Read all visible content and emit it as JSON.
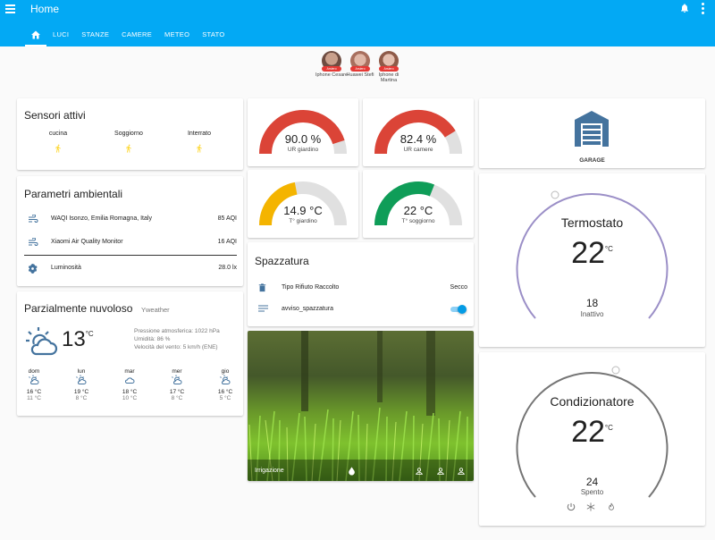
{
  "header": {
    "title": "Home",
    "tabs": [
      "LUCI",
      "STANZE",
      "CAMERE",
      "METEO",
      "STATO"
    ]
  },
  "people": [
    {
      "name": "Iphone Cesare",
      "badge": "Arsiero",
      "color": "#8d6e63"
    },
    {
      "name": "Huawei Stefi",
      "badge": "Arsiero",
      "color": "#c08a7a"
    },
    {
      "name": "Iphone di Martina",
      "badge": "Arsiero",
      "color": "#b07a6a"
    }
  ],
  "sensori": {
    "title": "Sensori attivi",
    "items": [
      {
        "label": "cucina",
        "icon": "walk-icon"
      },
      {
        "label": "Soggiorno",
        "icon": "walk-icon"
      },
      {
        "label": "Interrato",
        "icon": "walk-icon"
      }
    ]
  },
  "parametri": {
    "title": "Parametri ambientali",
    "rows": [
      {
        "label": "WAQI Isonzo, Emilia Romagna, Italy",
        "value": "85 AQI",
        "icon": "air-icon"
      },
      {
        "label": "Xiaomi Air Quality Monitor",
        "value": "16 AQI",
        "icon": "air-icon"
      },
      {
        "label": "Luminosità",
        "value": "28.0 lx",
        "icon": "brightness-icon"
      }
    ]
  },
  "meteo": {
    "title": "Parzialmente nuvoloso",
    "source": "Yweather",
    "temp": "13",
    "unit": "°C",
    "details": [
      "Pressione atmosferica: 1022 hPa",
      "Umidità: 86 %",
      "Velocità del vento: 5 km/h (ENE)"
    ],
    "forecast": [
      {
        "day": "dom",
        "hi": "16 °C",
        "lo": "11 °C",
        "icon": "partly-cloudy-icon"
      },
      {
        "day": "lun",
        "hi": "19 °C",
        "lo": "8 °C",
        "icon": "partly-cloudy-icon"
      },
      {
        "day": "mar",
        "hi": "18 °C",
        "lo": "10 °C",
        "icon": "cloudy-icon"
      },
      {
        "day": "mer",
        "hi": "17 °C",
        "lo": "8 °C",
        "icon": "partly-cloudy-icon"
      },
      {
        "day": "gio",
        "hi": "16 °C",
        "lo": "5 °C",
        "icon": "partly-cloudy-icon"
      }
    ]
  },
  "gauges": [
    {
      "value": "90.0 %",
      "label": "UR giardino",
      "fraction": 0.9,
      "color": "#db4437"
    },
    {
      "value": "82.4 %",
      "label": "UR camere",
      "fraction": 0.824,
      "color": "#db4437"
    },
    {
      "value": "14.9 °C",
      "label": "T° giardino",
      "fraction": 0.44,
      "color": "#f4b400"
    },
    {
      "value": "22 °C",
      "label": "T° soggiorno",
      "fraction": 0.62,
      "color": "#0f9d58"
    }
  ],
  "spazzatura": {
    "title": "Spazzatura",
    "rows": [
      {
        "label": "Tipo Rifiuto Raccolto",
        "value": "Secco",
        "icon": "trash-icon"
      },
      {
        "label": "avviso_spazzatura",
        "icon": "notes-icon",
        "toggle": true
      }
    ]
  },
  "irrigazione": {
    "label": "Irrigazione"
  },
  "garage": {
    "label": "GARAGE"
  },
  "termostato": {
    "title": "Termostato",
    "temp": "22",
    "unit": "°C",
    "setpoint": "18",
    "mode": "Inattivo",
    "color": "#9b8fc7"
  },
  "condizionatore": {
    "title": "Condizionatore",
    "temp": "22",
    "unit": "°C",
    "setpoint": "24",
    "mode": "Spento",
    "color": "#757575"
  }
}
